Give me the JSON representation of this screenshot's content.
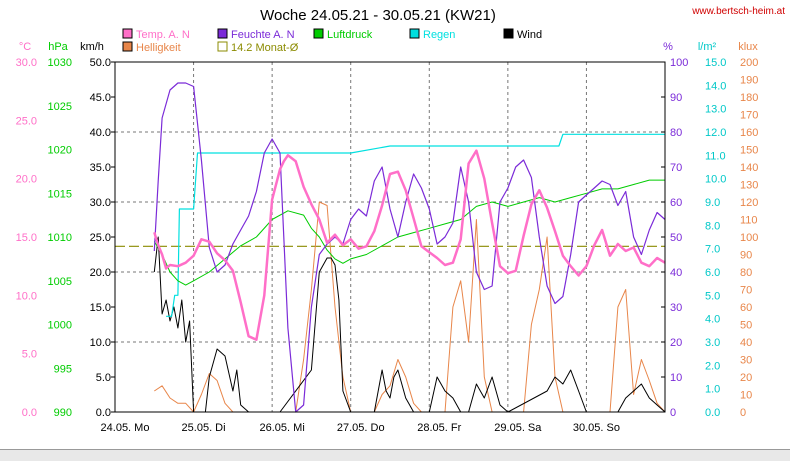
{
  "chart_data": {
    "type": "line",
    "title": "Woche 24.05.21 - 30.05.21 (KW21)",
    "source": "www.bertsch-heim.at",
    "x_labels": [
      "24.05. Mo",
      "25.05. Di",
      "26.05. Mi",
      "27.05. Do",
      "28.05. Fr",
      "29.05. Sa",
      "30.05. So"
    ],
    "x_range_days": [
      0,
      7
    ],
    "axes": {
      "temp": {
        "unit": "°C",
        "min": 0,
        "max": 30,
        "step": 5,
        "color": "#ff6fc8"
      },
      "pressure": {
        "unit": "hPa",
        "min": 990,
        "max": 1030,
        "step": 5,
        "color": "#00cc00"
      },
      "wind": {
        "unit": "km/h",
        "min": 0,
        "max": 50,
        "step": 5,
        "color": "#000000"
      },
      "humidity": {
        "unit": "%",
        "min": 0,
        "max": 100,
        "step": 10,
        "color": "#7b2bd8"
      },
      "rain": {
        "unit": "l/m²",
        "min": 0,
        "max": 15,
        "step": 1,
        "color": "#00c8c8"
      },
      "light": {
        "unit": "klux",
        "min": 0,
        "max": 200,
        "step": 10,
        "color": "#e8864a"
      }
    },
    "legend": [
      {
        "label": "Temp. A. N",
        "color": "#ff6fc8"
      },
      {
        "label": "Feuchte A. N",
        "color": "#7b2bd8"
      },
      {
        "label": "Luftdruck",
        "color": "#00cc00"
      },
      {
        "label": "Regen",
        "color": "#00e0e0"
      },
      {
        "label": "Wind",
        "color": "#000000"
      },
      {
        "label": "Helligkeit",
        "color": "#e8864a"
      },
      {
        "label": "14.2 Monat-Ø",
        "color": "#8b8b00"
      }
    ],
    "monthly_avg_temp": 14.2,
    "series": [
      {
        "name": "Temp. A. N",
        "axis": "temp",
        "x": [
          0.5,
          0.55,
          0.6,
          0.65,
          0.7,
          0.8,
          0.9,
          1.0,
          1.1,
          1.2,
          1.3,
          1.4,
          1.5,
          1.6,
          1.7,
          1.8,
          1.9,
          2.0,
          2.1,
          2.15,
          2.2,
          2.3,
          2.4,
          2.5,
          2.6,
          2.7,
          2.8,
          2.9,
          3.0,
          3.1,
          3.2,
          3.3,
          3.4,
          3.5,
          3.6,
          3.7,
          3.8,
          3.9,
          4.0,
          4.1,
          4.2,
          4.3,
          4.4,
          4.5,
          4.6,
          4.7,
          4.8,
          4.9,
          5.0,
          5.1,
          5.2,
          5.3,
          5.4,
          5.5,
          5.6,
          5.7,
          5.8,
          5.9,
          6.0,
          6.1,
          6.2,
          6.3,
          6.4,
          6.5,
          6.6,
          6.7,
          6.8,
          6.9,
          7.0
        ],
        "y": [
          15.4,
          14.3,
          13.5,
          12.3,
          12.6,
          12.5,
          12.8,
          13.4,
          14.8,
          14.6,
          13.6,
          13.0,
          12.1,
          9.4,
          6.5,
          6.2,
          10.0,
          18.2,
          20.8,
          21.5,
          22.0,
          21.5,
          19.3,
          17.8,
          16.5,
          14.5,
          15.2,
          14.3,
          14.8,
          14.0,
          14.2,
          15.5,
          17.7,
          20.4,
          20.6,
          19.0,
          16.6,
          14.2,
          13.7,
          13.2,
          12.6,
          12.8,
          14.8,
          21.3,
          22.4,
          20.0,
          16.2,
          12.5,
          11.9,
          12.1,
          15.1,
          17.8,
          19.0,
          17.5,
          15.5,
          13.4,
          12.5,
          11.7,
          12.5,
          14.3,
          15.6,
          13.4,
          14.4,
          13.8,
          14.1,
          12.8,
          12.5,
          13.2,
          12.8
        ]
      },
      {
        "name": "Feuchte A. N",
        "axis": "humidity",
        "x": [
          0.5,
          0.55,
          0.6,
          0.7,
          0.8,
          0.9,
          1.0,
          1.1,
          1.2,
          1.3,
          1.4,
          1.5,
          1.6,
          1.7,
          1.8,
          1.9,
          2.0,
          2.1,
          2.2,
          2.3,
          2.4,
          2.5,
          2.6,
          2.7,
          2.8,
          2.9,
          3.0,
          3.1,
          3.2,
          3.3,
          3.4,
          3.5,
          3.6,
          3.7,
          3.8,
          3.9,
          4.0,
          4.1,
          4.2,
          4.3,
          4.4,
          4.5,
          4.6,
          4.7,
          4.8,
          4.9,
          5.0,
          5.1,
          5.2,
          5.3,
          5.4,
          5.5,
          5.6,
          5.7,
          5.8,
          5.9,
          6.0,
          6.1,
          6.2,
          6.3,
          6.4,
          6.5,
          6.6,
          6.7,
          6.8,
          6.9,
          7.0
        ],
        "y": [
          46,
          66,
          84,
          92,
          94,
          94,
          93,
          72,
          47,
          40,
          42,
          48,
          52,
          56,
          63,
          74,
          78,
          74,
          24,
          0,
          2,
          30,
          45,
          48,
          50,
          48,
          55,
          58,
          56,
          66,
          70,
          58,
          50,
          60,
          68,
          64,
          58,
          48,
          50,
          54,
          70,
          60,
          40,
          35,
          36,
          60,
          64,
          70,
          72,
          67,
          50,
          36,
          31,
          33,
          45,
          60,
          62,
          64,
          66,
          65,
          59,
          63,
          50,
          45,
          52,
          57,
          55
        ]
      },
      {
        "name": "Luftdruck",
        "axis": "pressure",
        "x": [
          0.5,
          0.6,
          0.7,
          0.8,
          0.9,
          1.0,
          1.2,
          1.4,
          1.6,
          1.8,
          2.0,
          2.2,
          2.4,
          2.5,
          2.6,
          2.7,
          2.8,
          2.9,
          3.0,
          3.2,
          3.4,
          3.6,
          3.8,
          4.0,
          4.2,
          4.4,
          4.6,
          4.8,
          5.0,
          5.2,
          5.4,
          5.6,
          5.8,
          6.0,
          6.2,
          6.4,
          6.6,
          6.8,
          7.0
        ],
        "y": [
          1009.5,
          1008,
          1006,
          1005,
          1004.5,
          1005,
          1006,
          1007.5,
          1009,
          1010,
          1012,
          1013,
          1012.5,
          1011,
          1010,
          1008.5,
          1007.5,
          1007,
          1007.5,
          1008,
          1009,
          1010,
          1010.5,
          1011,
          1011.5,
          1012,
          1013.5,
          1014,
          1013.5,
          1014,
          1014.5,
          1014,
          1014.5,
          1015,
          1015.5,
          1015.5,
          1016,
          1016.5,
          1016.5
        ]
      },
      {
        "name": "Regen",
        "axis": "rain",
        "x": [
          0.65,
          0.72,
          0.76,
          0.8,
          0.82,
          0.85,
          0.88,
          1.0,
          1.05,
          1.12,
          1.5,
          2.0,
          2.5,
          3.0,
          3.5,
          4.0,
          4.5,
          5.0,
          5.5,
          5.65,
          5.7,
          6.0,
          6.5,
          7.0
        ],
        "y": [
          4.1,
          4.1,
          5.0,
          5.0,
          8.7,
          8.7,
          8.7,
          8.7,
          11.1,
          11.1,
          11.1,
          11.1,
          11.1,
          11.1,
          11.4,
          11.4,
          11.4,
          11.4,
          11.4,
          11.4,
          11.9,
          11.9,
          11.9,
          11.9
        ]
      },
      {
        "name": "Wind",
        "axis": "wind",
        "x": [
          0.5,
          0.55,
          0.6,
          0.65,
          0.7,
          0.75,
          0.8,
          0.85,
          0.9,
          0.95,
          1.0,
          1.05,
          1.1,
          1.15,
          1.2,
          1.3,
          1.4,
          1.5,
          1.55,
          1.6,
          1.7,
          1.8,
          1.9,
          2.0,
          2.1,
          2.5,
          2.6,
          2.7,
          2.75,
          2.8,
          2.85,
          2.9,
          3.0,
          3.1,
          3.2,
          3.3,
          3.4,
          3.45,
          3.5,
          3.55,
          3.6,
          3.7,
          3.8,
          4.0,
          4.1,
          4.2,
          4.3,
          4.4,
          4.5,
          4.6,
          4.7,
          4.8,
          4.9,
          5.0,
          5.5,
          5.6,
          5.7,
          5.8,
          5.9,
          6.0,
          6.4,
          6.5,
          6.6,
          6.7,
          6.8,
          6.9,
          7.0
        ],
        "y": [
          20,
          25,
          14,
          16,
          13,
          15,
          12,
          16,
          10,
          13,
          0,
          0,
          0,
          0,
          5,
          9,
          8,
          3,
          6,
          1,
          0,
          0,
          0,
          0,
          0,
          6,
          20,
          22,
          22,
          21,
          16,
          3,
          0,
          0,
          0,
          0,
          6,
          3,
          2,
          5,
          6,
          2,
          0,
          0,
          5,
          3,
          2,
          0,
          0,
          4,
          2,
          5,
          1,
          0,
          3,
          5,
          4,
          6,
          3,
          0,
          0,
          2,
          3,
          4,
          2,
          1,
          0
        ]
      },
      {
        "name": "Helligkeit",
        "axis": "light",
        "x": [
          0.5,
          0.6,
          0.7,
          0.8,
          0.9,
          1.0,
          1.1,
          1.2,
          1.3,
          1.4,
          1.5,
          1.6,
          2.0,
          2.1,
          2.2,
          2.3,
          2.4,
          2.5,
          2.6,
          2.7,
          2.8,
          2.9,
          3.0,
          3.1,
          3.2,
          3.3,
          3.4,
          3.5,
          3.6,
          3.7,
          3.8,
          3.9,
          4.0,
          4.1,
          4.2,
          4.3,
          4.4,
          4.5,
          4.6,
          4.7,
          4.8,
          4.9,
          5.0,
          5.1,
          5.2,
          5.3,
          5.4,
          5.5,
          5.6,
          5.7,
          5.8,
          5.9,
          6.0,
          6.1,
          6.2,
          6.3,
          6.4,
          6.5,
          6.6,
          6.7,
          6.8,
          6.9,
          7.0
        ],
        "y": [
          12,
          15,
          8,
          5,
          5,
          0,
          10,
          22,
          18,
          5,
          0,
          0,
          0,
          0,
          0,
          0,
          30,
          70,
          120,
          118,
          60,
          20,
          0,
          0,
          0,
          0,
          10,
          15,
          30,
          20,
          5,
          0,
          0,
          0,
          0,
          60,
          75,
          40,
          110,
          20,
          0,
          0,
          0,
          0,
          0,
          50,
          70,
          100,
          20,
          0,
          0,
          0,
          0,
          0,
          0,
          0,
          60,
          70,
          10,
          30,
          18,
          5,
          0
        ]
      }
    ]
  }
}
